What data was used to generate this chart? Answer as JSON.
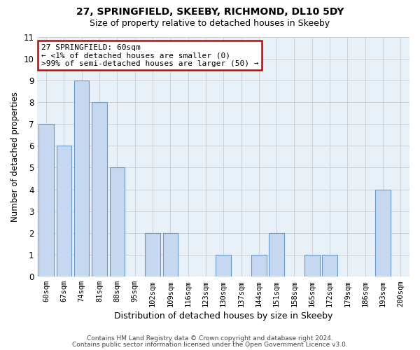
{
  "title": "27, SPRINGFIELD, SKEEBY, RICHMOND, DL10 5DY",
  "subtitle": "Size of property relative to detached houses in Skeeby",
  "xlabel": "Distribution of detached houses by size in Skeeby",
  "ylabel": "Number of detached properties",
  "bar_labels": [
    "60sqm",
    "67sqm",
    "74sqm",
    "81sqm",
    "88sqm",
    "95sqm",
    "102sqm",
    "109sqm",
    "116sqm",
    "123sqm",
    "130sqm",
    "137sqm",
    "144sqm",
    "151sqm",
    "158sqm",
    "165sqm",
    "172sqm",
    "179sqm",
    "186sqm",
    "193sqm",
    "200sqm"
  ],
  "bar_values": [
    7,
    6,
    9,
    8,
    5,
    0,
    2,
    2,
    0,
    0,
    1,
    0,
    1,
    2,
    0,
    1,
    1,
    0,
    0,
    4,
    0
  ],
  "bar_color": "#c5d8ef",
  "bar_edgecolor": "#6699cc",
  "ylim": [
    0,
    11
  ],
  "yticks": [
    0,
    1,
    2,
    3,
    4,
    5,
    6,
    7,
    8,
    9,
    10,
    11
  ],
  "annotation_box_text": "27 SPRINGFIELD: 60sqm\n← <1% of detached houses are smaller (0)\n>99% of semi-detached houses are larger (50) →",
  "footer_line1": "Contains HM Land Registry data © Crown copyright and database right 2024.",
  "footer_line2": "Contains public sector information licensed under the Open Government Licence v3.0.",
  "grid_color": "#cccccc",
  "background_color": "#ffffff",
  "plot_bg_color": "#e8f0f8",
  "ann_box_bg": "#ffffff",
  "ann_box_edge": "#cc0000",
  "title_fontsize": 10,
  "subtitle_fontsize": 9
}
